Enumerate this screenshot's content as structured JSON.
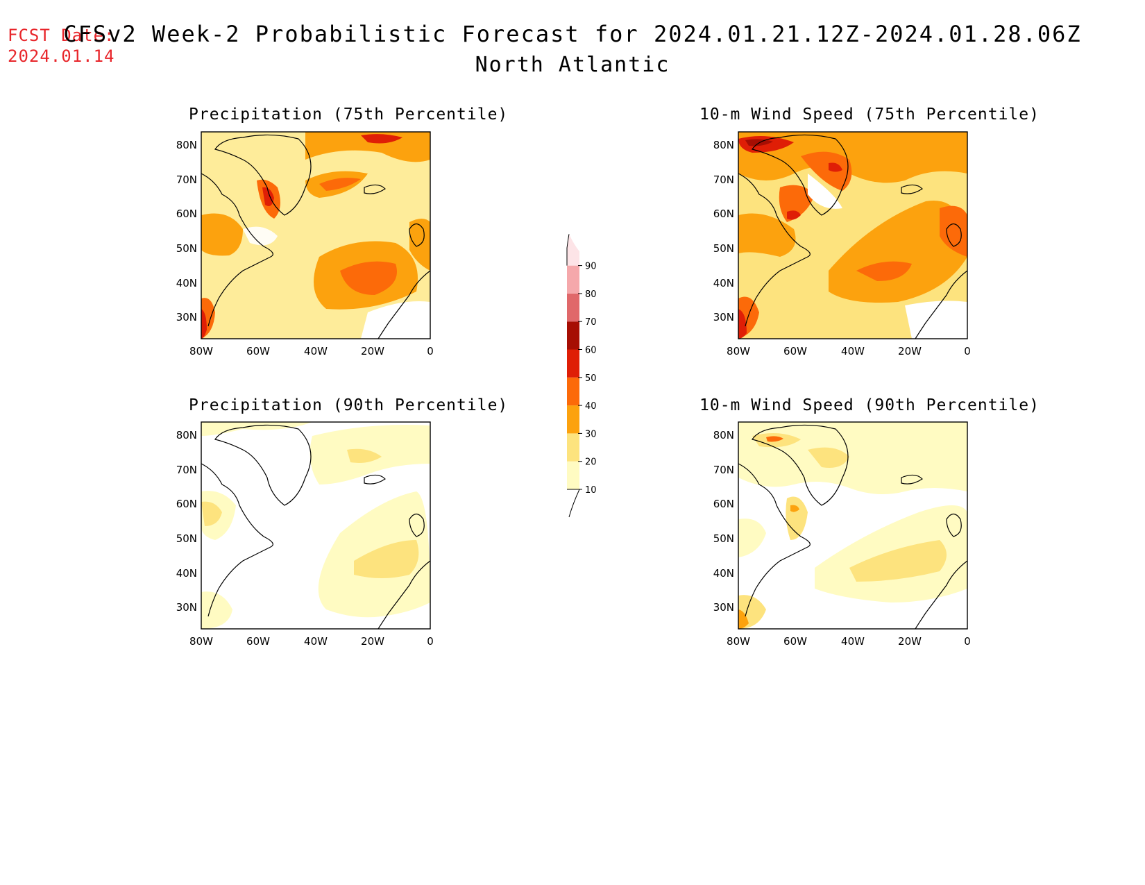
{
  "header": {
    "fcst_label": "FCST Date:",
    "fcst_date": "2024.01.14",
    "title": "CFSv2 Week-2 Probabilistic Forecast for 2024.01.21.12Z-2024.01.28.06Z",
    "subtitle": "North Atlantic"
  },
  "panels": [
    {
      "title": "Precipitation (75th Percentile)"
    },
    {
      "title": "10-m Wind Speed (75th Percentile)"
    },
    {
      "title": "Precipitation (90th Percentile)"
    },
    {
      "title": "10-m Wind Speed (90th Percentile)"
    }
  ],
  "axes": {
    "lat_labels": [
      "80N",
      "70N",
      "60N",
      "50N",
      "40N",
      "30N"
    ],
    "lon_labels": [
      "80W",
      "60W",
      "40W",
      "20W",
      "0"
    ]
  },
  "colorbar": {
    "levels": [
      "10",
      "20",
      "30",
      "40",
      "50",
      "60",
      "70",
      "80",
      "90"
    ],
    "colors": [
      "#fffbc2",
      "#fde37e",
      "#fca20e",
      "#fc6a09",
      "#df1e06",
      "#a60e03",
      "#e0686a",
      "#f5a8ab",
      "#fde4e7"
    ]
  }
}
